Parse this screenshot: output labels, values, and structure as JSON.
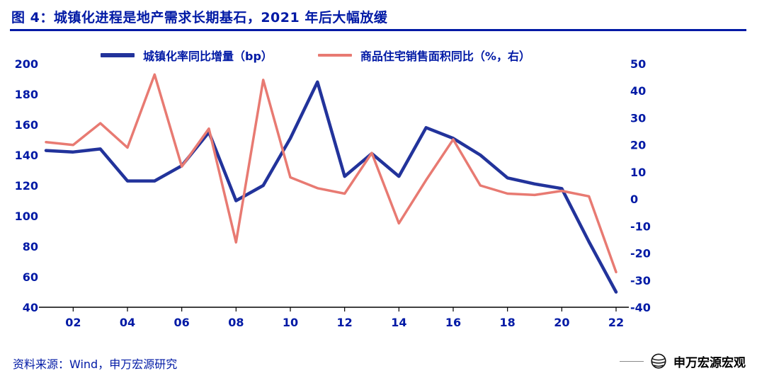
{
  "header": {
    "title": "图 4：城镇化进程是地产需求长期基石，2021 年后大幅放缓"
  },
  "colors": {
    "text_navy": "#0019a5",
    "line_blue": "#22339b",
    "line_red": "#e87a72",
    "axis_black": "#000000"
  },
  "footer": {
    "source": "资料来源：Wind，申万宏源研究",
    "brand": "申万宏源宏观",
    "brand_icon": "globe-waves-icon"
  },
  "chart_data": {
    "type": "line",
    "title": "图 4：城镇化进程是地产需求长期基石，2021 年后大幅放缓",
    "grid": false,
    "legend_position": "top",
    "x": [
      2001,
      2002,
      2003,
      2004,
      2005,
      2006,
      2007,
      2008,
      2009,
      2010,
      2011,
      2012,
      2013,
      2014,
      2015,
      2016,
      2017,
      2018,
      2019,
      2020,
      2021,
      2022
    ],
    "x_tick_years": [
      2002,
      2004,
      2006,
      2008,
      2010,
      2012,
      2014,
      2016,
      2018,
      2020,
      2022
    ],
    "x_tick_labels": [
      "02",
      "04",
      "06",
      "08",
      "10",
      "12",
      "14",
      "16",
      "18",
      "20",
      "22"
    ],
    "left_axis": {
      "min": 40,
      "max": 200,
      "ticks": [
        200,
        180,
        160,
        140,
        120,
        100,
        80,
        60,
        40
      ]
    },
    "right_axis": {
      "min": -40,
      "max": 50,
      "ticks": [
        50,
        40,
        30,
        20,
        10,
        0,
        -10,
        -20,
        -30,
        -40
      ]
    },
    "series": [
      {
        "name": "城镇化率同比增量（bp）",
        "axis": "left",
        "color": "#22339b",
        "width": 4.5,
        "values": [
          143,
          142,
          144,
          123,
          123,
          133,
          155,
          110,
          120,
          151,
          188,
          126,
          141,
          126,
          158,
          151,
          140,
          125,
          121,
          118,
          83,
          50
        ]
      },
      {
        "name": "商品住宅销售面积同比（%，右）",
        "axis": "right",
        "color": "#e87a72",
        "width": 3.5,
        "values": [
          21,
          20,
          28,
          19,
          46,
          12,
          26,
          -16,
          44,
          8,
          4,
          2,
          17,
          -9,
          7,
          22,
          5,
          2,
          1.5,
          3,
          1,
          -27
        ]
      }
    ]
  }
}
